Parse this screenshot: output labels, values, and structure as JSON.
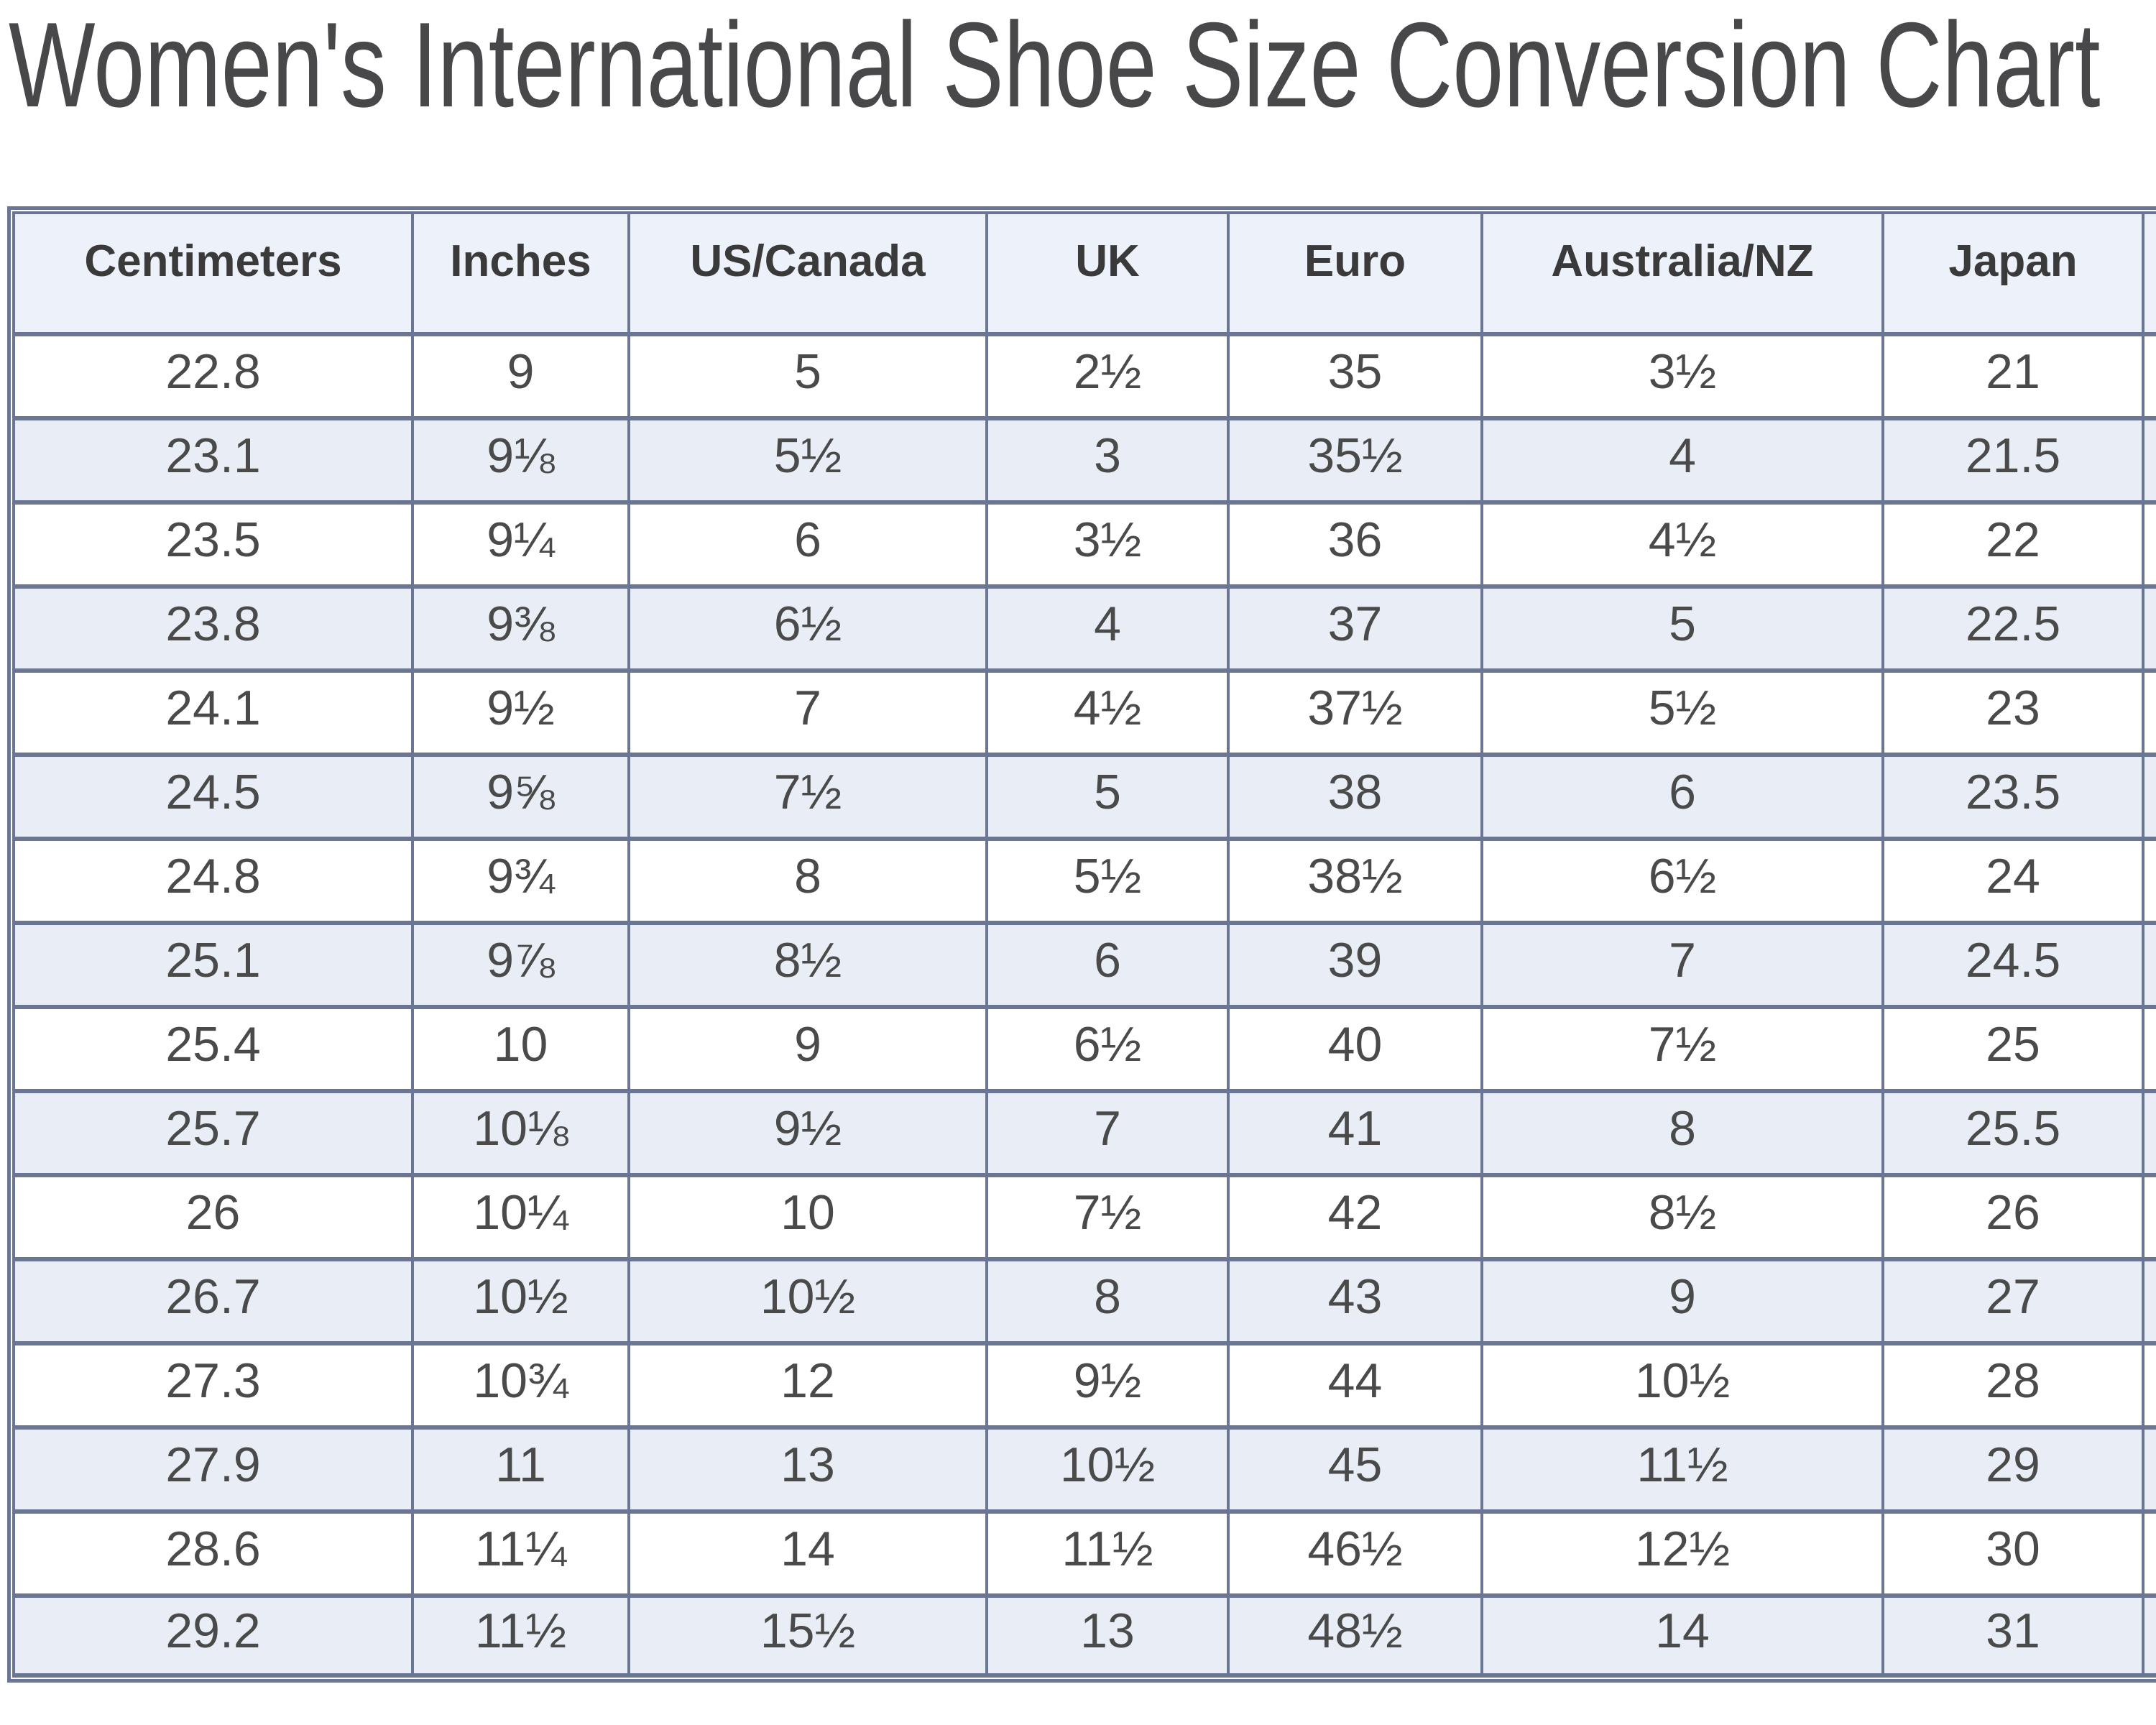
{
  "title": "Women's International Shoe Size Conversion Chart",
  "chart_data": {
    "type": "table",
    "title": "Women's International Shoe Size Conversion Chart",
    "columns": [
      "Centimeters",
      "Inches",
      "US/Canada",
      "UK",
      "Euro",
      "Australia/NZ",
      "Japan"
    ],
    "rows": [
      [
        "22.8",
        "9",
        "5",
        "2½",
        "35",
        "3½",
        "21"
      ],
      [
        "23.1",
        "9⅛",
        "5½",
        "3",
        "35½",
        "4",
        "21.5"
      ],
      [
        "23.5",
        "9¼",
        "6",
        "3½",
        "36",
        "4½",
        "22"
      ],
      [
        "23.8",
        "9⅜",
        "6½",
        "4",
        "37",
        "5",
        "22.5"
      ],
      [
        "24.1",
        "9½",
        "7",
        "4½",
        "37½",
        "5½",
        "23"
      ],
      [
        "24.5",
        "9⅝",
        "7½",
        "5",
        "38",
        "6",
        "23.5"
      ],
      [
        "24.8",
        "9¾",
        "8",
        "5½",
        "38½",
        "6½",
        "24"
      ],
      [
        "25.1",
        "9⅞",
        "8½",
        "6",
        "39",
        "7",
        "24.5"
      ],
      [
        "25.4",
        "10",
        "9",
        "6½",
        "40",
        "7½",
        "25"
      ],
      [
        "25.7",
        "10⅛",
        "9½",
        "7",
        "41",
        "8",
        "25.5"
      ],
      [
        "26",
        "10¼",
        "10",
        "7½",
        "42",
        "8½",
        "26"
      ],
      [
        "26.7",
        "10½",
        "10½",
        "8",
        "43",
        "9",
        "27"
      ],
      [
        "27.3",
        "10¾",
        "12",
        "9½",
        "44",
        "10½",
        "28"
      ],
      [
        "27.9",
        "11",
        "13",
        "10½",
        "45",
        "11½",
        "29"
      ],
      [
        "28.6",
        "11¼",
        "14",
        "11½",
        "46½",
        "12½",
        "30"
      ],
      [
        "29.2",
        "11½",
        "15½",
        "13",
        "48½",
        "14",
        "31"
      ]
    ],
    "layout_hints": {
      "striped_rows": true,
      "header_position": "top"
    }
  },
  "colors": {
    "border": "#6b7694",
    "header_bg": "#edf1f9",
    "stripe_row_bg": "#e8edf6",
    "plain_row_bg": "#ffffff",
    "header_text": "#3a3a3a",
    "cell_text": "#4a4a4a",
    "title_text": "#48484a"
  }
}
